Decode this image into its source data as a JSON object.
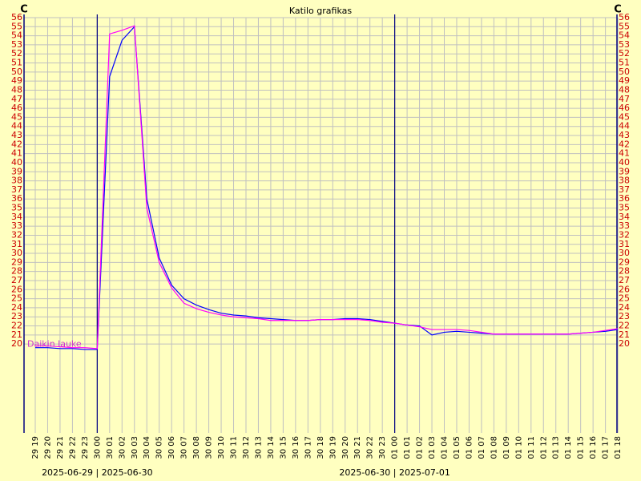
{
  "chart_data": {
    "type": "line",
    "title": "Katilo  grafikas",
    "y_unit_left": "C",
    "y_unit_right": "C",
    "annotation": "Daikin lauke",
    "categories": [
      "29 19",
      "29 20",
      "29 21",
      "29 22",
      "29 23",
      "30 00",
      "30 01",
      "30 02",
      "30 03",
      "30 04",
      "30 05",
      "30 06",
      "30 07",
      "30 08",
      "30 09",
      "30 10",
      "30 11",
      "30 12",
      "30 13",
      "30 14",
      "30 15",
      "30 16",
      "30 17",
      "30 18",
      "30 19",
      "30 20",
      "30 21",
      "30 22",
      "30 23",
      "01 00",
      "01 01",
      "01 02",
      "01 03",
      "01 04",
      "01 05",
      "01 06",
      "01 07",
      "01 08",
      "01 09",
      "01 10",
      "01 11",
      "01 12",
      "01 13",
      "01 14",
      "01 15",
      "01 16",
      "01 17",
      "01 18"
    ],
    "day_separators": [
      {
        "category": "30 00",
        "label": "2025-06-29 | 2025-06-30"
      },
      {
        "category": "01 00",
        "label": "2025-06-30 | 2025-07-01"
      }
    ],
    "series": [
      {
        "name": "Blue",
        "color": "#0000ff",
        "values": [
          19.6,
          19.6,
          19.5,
          19.5,
          19.4,
          19.4,
          49.5,
          53.5,
          55.0,
          36,
          29.5,
          26.5,
          25,
          24.3,
          23.8,
          23.4,
          23.2,
          23.1,
          22.9,
          22.8,
          22.7,
          22.6,
          22.6,
          22.7,
          22.7,
          22.8,
          22.8,
          22.7,
          22.5,
          22.3,
          22.1,
          22.0,
          21.0,
          21.3,
          21.4,
          21.3,
          21.2,
          21.1,
          21.1,
          21.1,
          21.1,
          21.1,
          21.1,
          21.1,
          21.2,
          21.3,
          21.4,
          21.6
        ]
      },
      {
        "name": "Magenta",
        "color": "#ff00ff",
        "values": [
          19.8,
          19.8,
          19.7,
          19.6,
          19.6,
          19.5,
          54.2,
          54.6,
          55.1,
          35,
          29,
          26.2,
          24.5,
          23.9,
          23.5,
          23.2,
          23.0,
          22.9,
          22.8,
          22.6,
          22.6,
          22.6,
          22.6,
          22.7,
          22.7,
          22.7,
          22.7,
          22.6,
          22.4,
          22.3,
          22.1,
          21.9,
          21.6,
          21.6,
          21.6,
          21.5,
          21.3,
          21.1,
          21.1,
          21.1,
          21.1,
          21.1,
          21.1,
          21.1,
          21.2,
          21.3,
          21.5,
          21.7
        ]
      }
    ],
    "ylim": [
      10.2,
      56
    ],
    "yticks": [
      20,
      21,
      22,
      23,
      24,
      25,
      26,
      27,
      28,
      29,
      30,
      31,
      32,
      33,
      34,
      35,
      36,
      37,
      38,
      39,
      40,
      41,
      42,
      43,
      44,
      45,
      46,
      47,
      48,
      49,
      50,
      51,
      52,
      53,
      54,
      55,
      56
    ],
    "grid": true,
    "tick_label_color": "#cc0000",
    "grid_color": "#c0c0c0",
    "background": "#ffffc0"
  }
}
